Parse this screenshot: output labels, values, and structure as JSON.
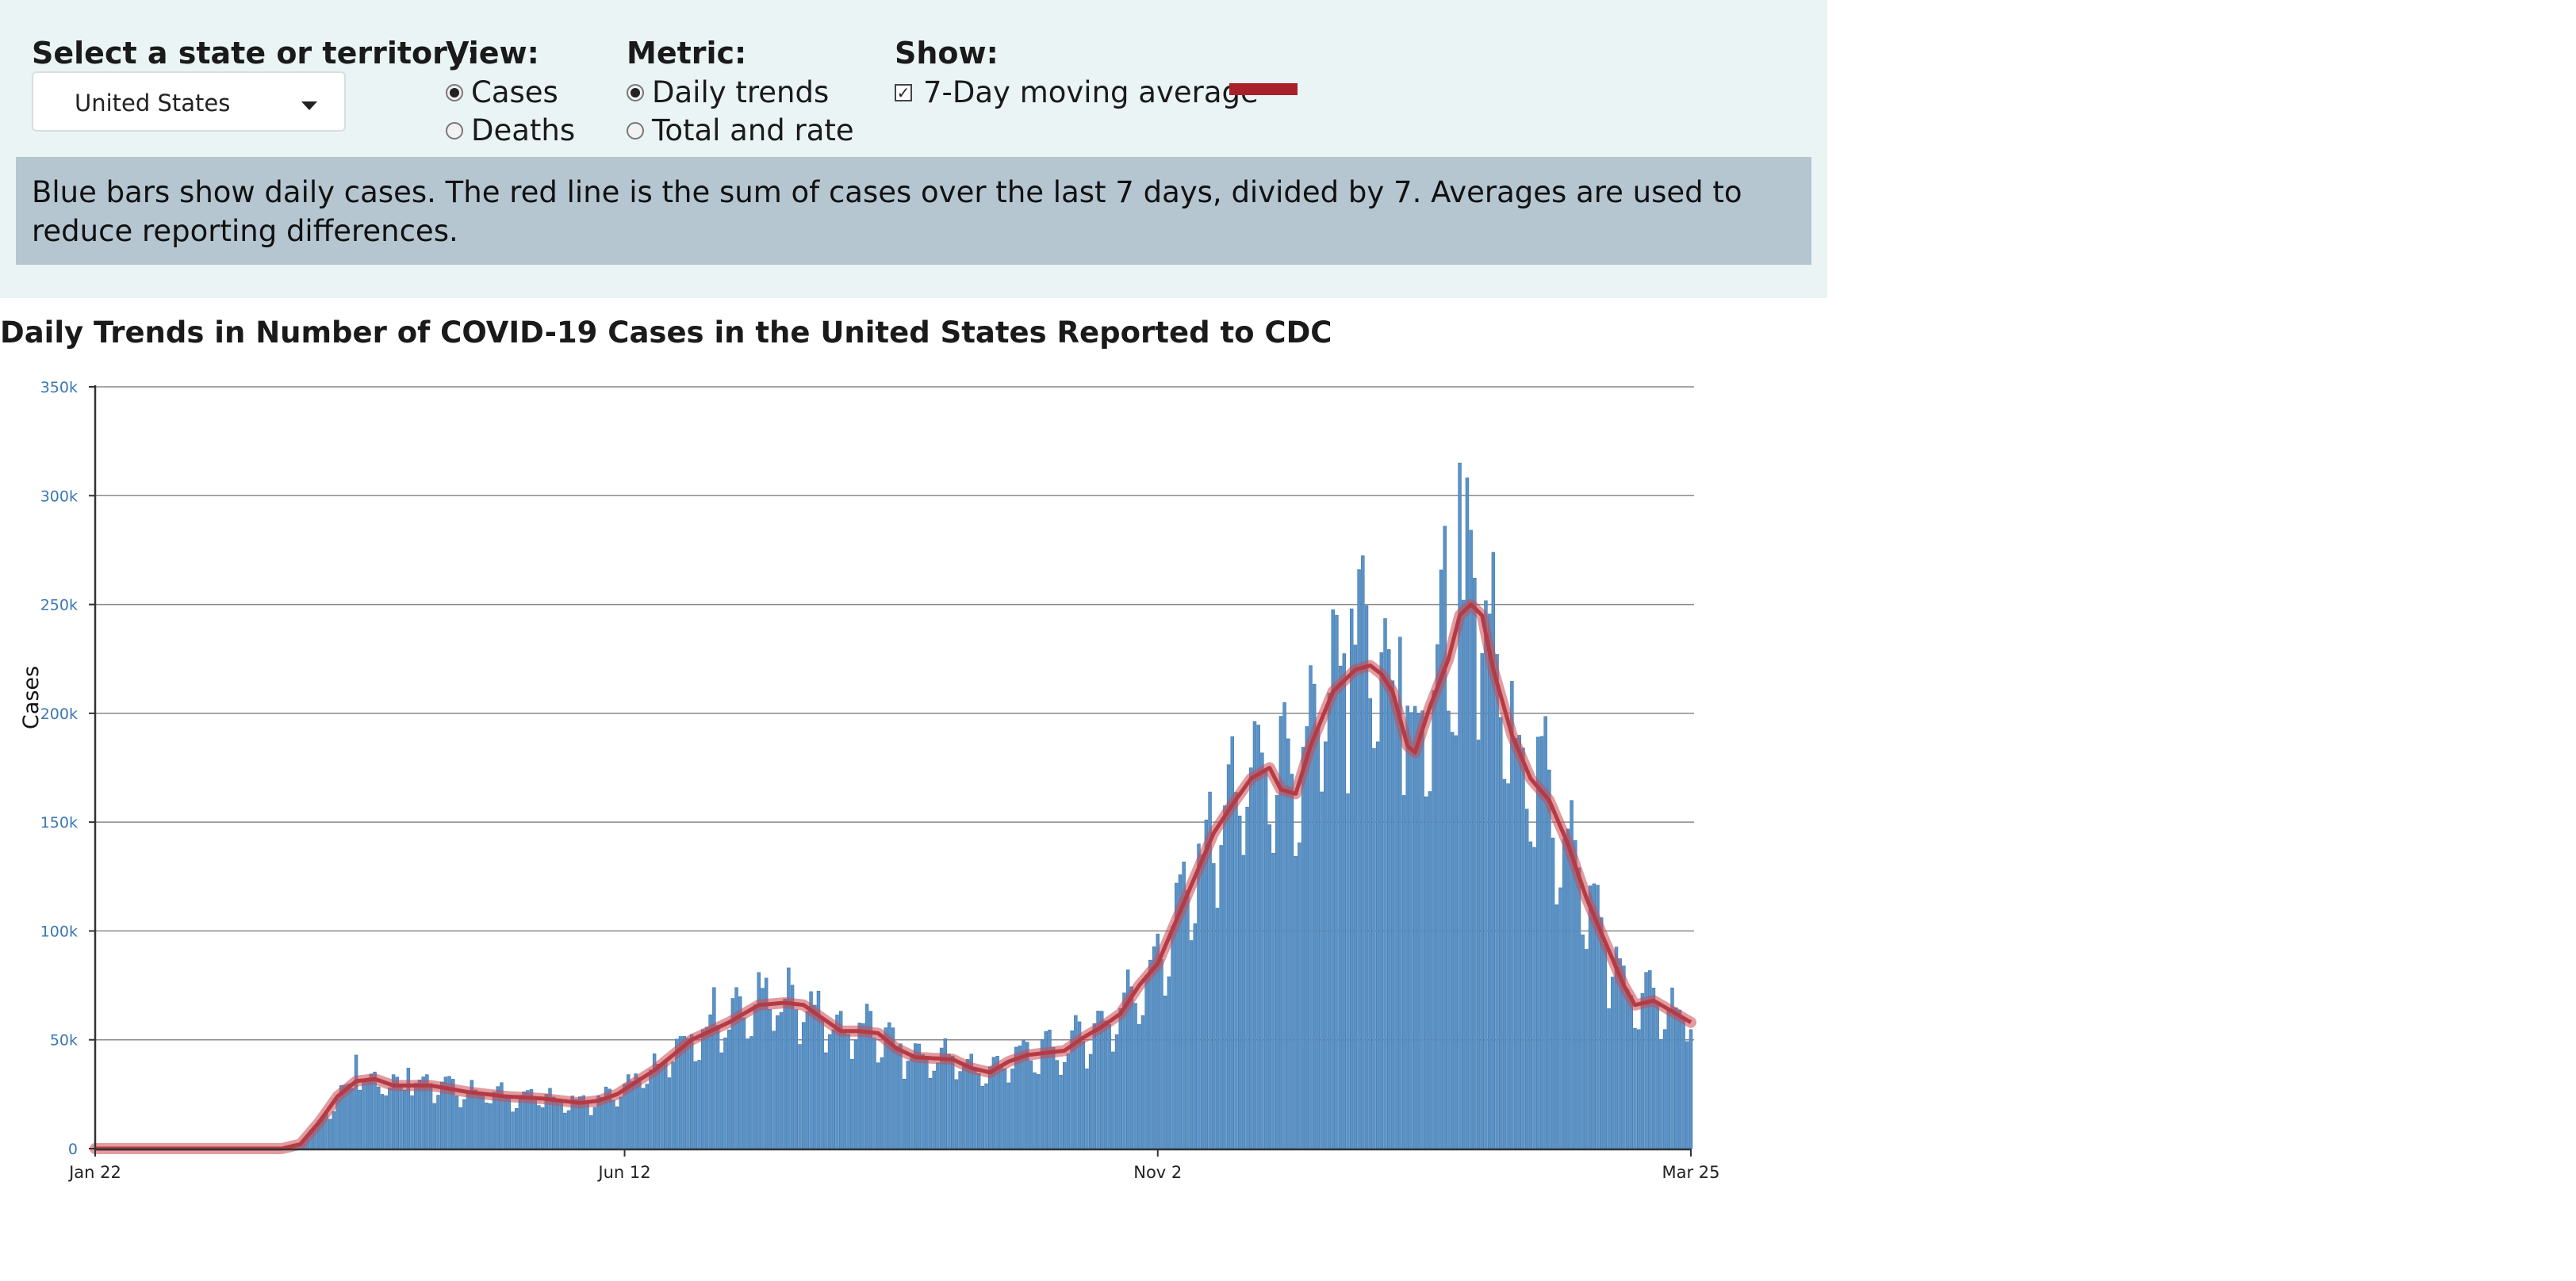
{
  "controls": {
    "state_label": "Select a state or territory:",
    "state_value": "United States",
    "view_label": "View:",
    "view_options": [
      "Cases",
      "Deaths"
    ],
    "view_selected": "Cases",
    "metric_label": "Metric:",
    "metric_options": [
      "Daily trends",
      "Total and rate"
    ],
    "metric_selected": "Daily trends",
    "show_label": "Show:",
    "show_option": "7-Day moving average",
    "show_checked": true,
    "average_color": "#a8202a"
  },
  "info_text": "Blue bars show daily cases. The red line is the sum of cases over the last 7 days, divided by 7. Averages are used to reduce reporting differences.",
  "chart_data": {
    "type": "bar",
    "title": "Daily Trends in Number of COVID-19 Cases in the United States Reported to CDC",
    "ylabel": "Cases",
    "xlabel": "",
    "ylim": [
      0,
      350000
    ],
    "y_ticks": [
      0,
      50000,
      100000,
      150000,
      200000,
      250000,
      300000,
      350000
    ],
    "y_tick_labels": [
      "0",
      "50k",
      "100k",
      "150k",
      "200k",
      "250k",
      "300k",
      "350k"
    ],
    "x_tick_labels": [
      "Jan 22",
      "Jun 12",
      "Nov 2",
      "Mar 25"
    ],
    "x_tick_days": [
      0,
      142,
      285,
      428
    ],
    "grid": true,
    "bar_color": "#5b93c7",
    "line_color": "#c94a52",
    "series": [
      {
        "name": "Daily cases",
        "type": "bar"
      },
      {
        "name": "7-Day moving average",
        "type": "line"
      }
    ],
    "start_date": "Jan 22",
    "days": 429,
    "moving_average_keypoints": [
      [
        0,
        0
      ],
      [
        50,
        0
      ],
      [
        55,
        2000
      ],
      [
        60,
        12000
      ],
      [
        65,
        24000
      ],
      [
        70,
        31000
      ],
      [
        75,
        32000
      ],
      [
        80,
        29000
      ],
      [
        90,
        29000
      ],
      [
        100,
        26000
      ],
      [
        110,
        24000
      ],
      [
        120,
        23000
      ],
      [
        130,
        21000
      ],
      [
        135,
        22000
      ],
      [
        140,
        25000
      ],
      [
        150,
        36000
      ],
      [
        160,
        50000
      ],
      [
        170,
        58000
      ],
      [
        178,
        66000
      ],
      [
        185,
        67000
      ],
      [
        190,
        66000
      ],
      [
        195,
        60000
      ],
      [
        200,
        54000
      ],
      [
        205,
        54000
      ],
      [
        210,
        53000
      ],
      [
        215,
        46000
      ],
      [
        220,
        42000
      ],
      [
        230,
        41000
      ],
      [
        235,
        37000
      ],
      [
        240,
        35000
      ],
      [
        245,
        40000
      ],
      [
        250,
        43000
      ],
      [
        255,
        44000
      ],
      [
        260,
        45000
      ],
      [
        265,
        51000
      ],
      [
        270,
        56000
      ],
      [
        275,
        62000
      ],
      [
        280,
        75000
      ],
      [
        285,
        85000
      ],
      [
        290,
        105000
      ],
      [
        295,
        125000
      ],
      [
        300,
        145000
      ],
      [
        305,
        158000
      ],
      [
        310,
        170000
      ],
      [
        315,
        175000
      ],
      [
        318,
        165000
      ],
      [
        322,
        163000
      ],
      [
        326,
        185000
      ],
      [
        332,
        210000
      ],
      [
        338,
        220000
      ],
      [
        342,
        222000
      ],
      [
        345,
        218000
      ],
      [
        348,
        210000
      ],
      [
        352,
        185000
      ],
      [
        354,
        182000
      ],
      [
        358,
        203000
      ],
      [
        363,
        225000
      ],
      [
        366,
        245000
      ],
      [
        369,
        250000
      ],
      [
        372,
        245000
      ],
      [
        375,
        220000
      ],
      [
        380,
        190000
      ],
      [
        385,
        170000
      ],
      [
        390,
        160000
      ],
      [
        395,
        140000
      ],
      [
        400,
        115000
      ],
      [
        405,
        95000
      ],
      [
        410,
        75000
      ],
      [
        413,
        66000
      ],
      [
        418,
        68000
      ],
      [
        423,
        63000
      ],
      [
        428,
        58000
      ],
      [
        433,
        56000
      ],
      [
        438,
        55000
      ],
      [
        443,
        55000
      ],
      [
        450,
        58000
      ]
    ]
  }
}
